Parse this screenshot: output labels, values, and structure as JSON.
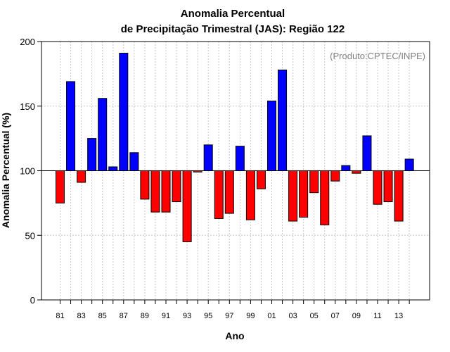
{
  "chart_data": {
    "type": "bar",
    "title_line1": "Anomalia Percentual",
    "title_line2": "de Precipitação Trimestral (JAS): Região 122",
    "xlabel": "Ano",
    "ylabel": "Anomalia Percentual (%)",
    "annotation": "(Produto:CPTEC/INPE)",
    "ylim": [
      0,
      200
    ],
    "yticks": [
      "0",
      "50",
      "100",
      "150",
      "200"
    ],
    "baseline": 100,
    "colors": {
      "above": "#0000ff",
      "below": "#ff0000",
      "grid": "#c8c8c8"
    },
    "tick_labels": [
      "81",
      "83",
      "85",
      "87",
      "89",
      "91",
      "93",
      "95",
      "97",
      "99",
      "01",
      "03",
      "05",
      "07",
      "09",
      "11",
      "13"
    ],
    "categories": [
      "1981",
      "1982",
      "1983",
      "1984",
      "1985",
      "1986",
      "1987",
      "1988",
      "1989",
      "1990",
      "1991",
      "1992",
      "1993",
      "1994",
      "1995",
      "1996",
      "1997",
      "1998",
      "1999",
      "2000",
      "2001",
      "2002",
      "2003",
      "2004",
      "2005",
      "2006",
      "2007",
      "2008",
      "2009",
      "2010",
      "2011",
      "2012",
      "2013",
      "2014"
    ],
    "values": [
      75,
      169,
      91,
      125,
      156,
      103,
      191,
      114,
      78,
      68,
      68,
      76,
      45,
      99,
      120,
      63,
      67,
      119,
      62,
      86,
      154,
      178,
      61,
      64,
      83,
      58,
      92,
      104,
      98,
      127,
      74,
      76,
      61,
      109
    ]
  }
}
